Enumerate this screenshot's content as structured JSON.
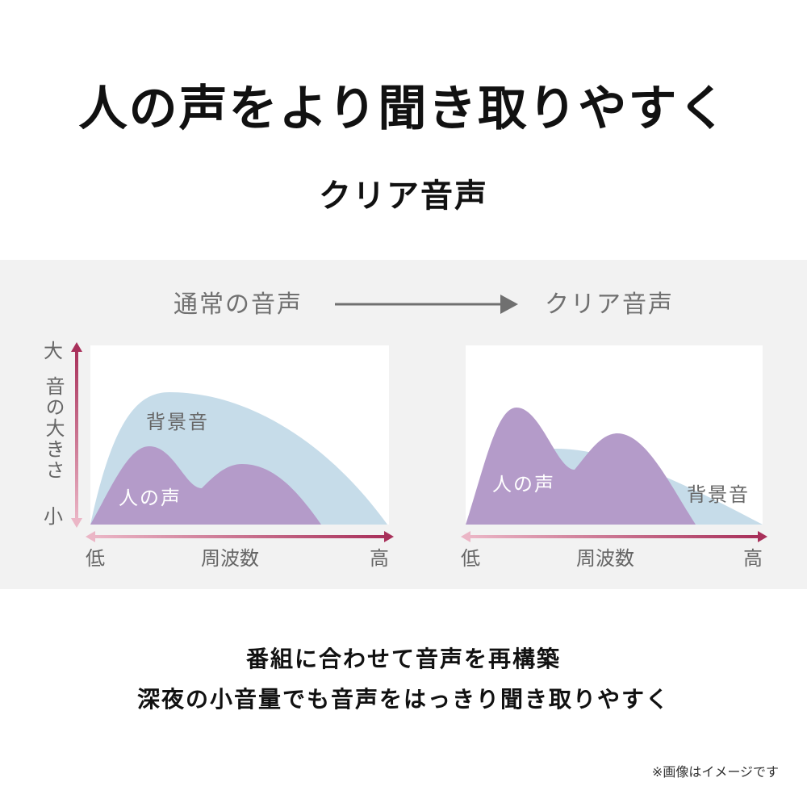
{
  "header": {
    "title": "人の声をより聞き取りやすく",
    "subtitle": "クリア音声"
  },
  "comparison": {
    "before_label": "通常の音声",
    "after_label": "クリア音声"
  },
  "panels": [
    {
      "y_axis": {
        "high": "大",
        "label": "音の大きさ",
        "low": "小"
      },
      "x_axis": {
        "low": "低",
        "label": "周波数",
        "high": "高"
      },
      "background_label": "背景音",
      "voice_label": "人の声"
    },
    {
      "x_axis": {
        "low": "低",
        "label": "周波数",
        "high": "高"
      },
      "background_label": "背景音",
      "voice_label": "人の声"
    }
  ],
  "footer": {
    "lines": [
      "番組に合わせて音声を再構築",
      "深夜の小音量でも音声をはっきり聞き取りやすく"
    ],
    "note": "※画像はイメージです"
  }
}
